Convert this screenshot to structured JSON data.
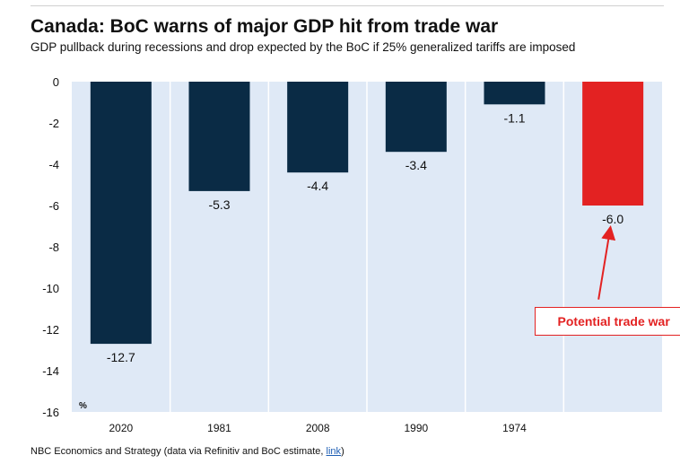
{
  "chart_data": {
    "type": "bar",
    "title": "Canada: BoC warns of major GDP hit from trade war",
    "subtitle": "GDP pullback during recessions and drop expected by the BoC if 25% generalized tariffs are imposed",
    "categories": [
      "2020",
      "1981",
      "2008",
      "1990",
      "1974",
      ""
    ],
    "values": [
      -12.7,
      -5.3,
      -4.4,
      -3.4,
      -1.1,
      -6.0
    ],
    "data_labels": [
      "-12.7",
      "-5.3",
      "-4.4",
      "-3.4",
      "-1.1",
      "-6.0"
    ],
    "yticks": [
      "0",
      "-2",
      "-4",
      "-6",
      "-8",
      "-10",
      "-12",
      "-14",
      "-16"
    ],
    "ylim": [
      -16,
      0
    ],
    "ylabel": "%",
    "xlabel": "",
    "grid": true,
    "colors": {
      "bar": "#0a2b45",
      "highlight": "#e32222",
      "plot_bg": "#dfe9f6",
      "grid": "#ffffff"
    },
    "annotation": {
      "text": "Potential trade war",
      "target_index": 5
    }
  },
  "footer": {
    "source_text": "NBC Economics and Strategy (data via Refinitiv and BoC estimate,",
    "link_text": "link",
    "close": ")"
  }
}
